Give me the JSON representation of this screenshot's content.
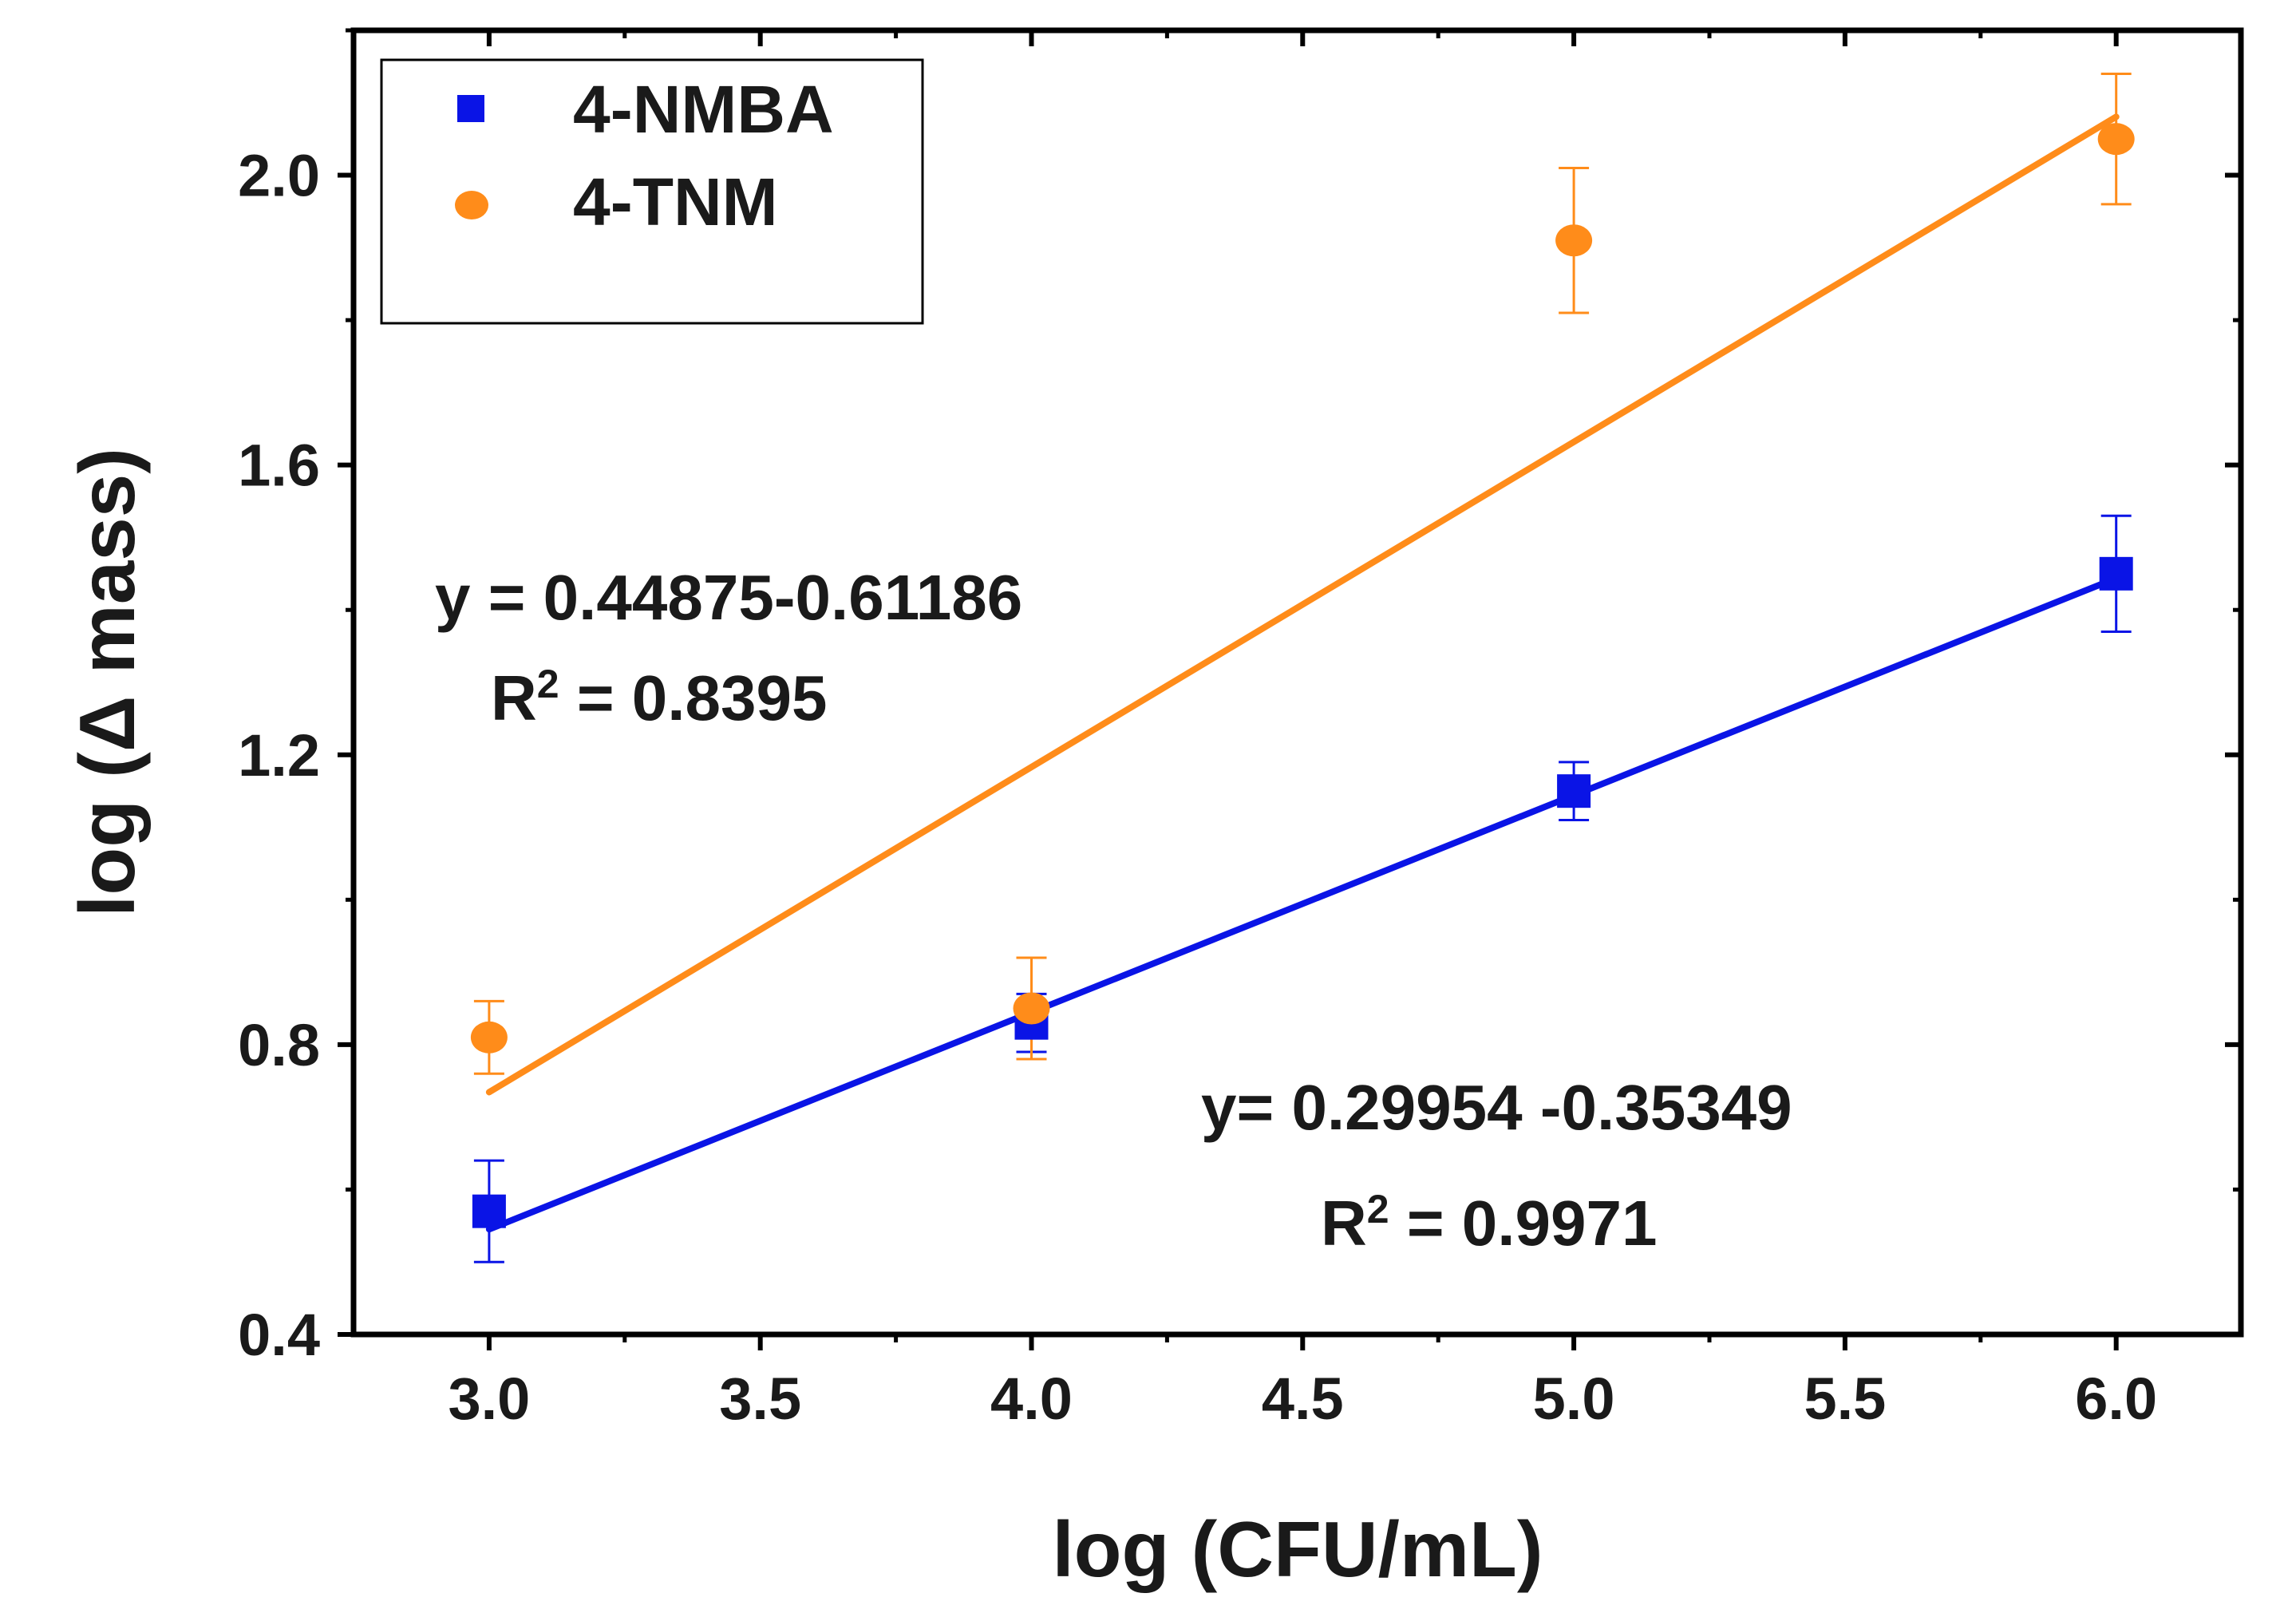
{
  "chart_data": {
    "type": "scatter",
    "xlabel": "log (CFU/mL)",
    "ylabel": "log (Δ mass)",
    "xlim": [
      2.75,
      6.23
    ],
    "ylim": [
      0.4,
      2.2
    ],
    "xticks": [
      3.0,
      3.5,
      4.0,
      4.5,
      5.0,
      5.5,
      6.0
    ],
    "xtick_labels": [
      "3.0",
      "3.5",
      "4.0",
      "4.5",
      "5.0",
      "5.5",
      "6.0"
    ],
    "yticks": [
      0.4,
      0.8,
      1.2,
      1.6,
      2.0
    ],
    "ytick_labels": [
      "0.4",
      "0.8",
      "1.2",
      "1.6",
      "2.0"
    ],
    "x_minor_step": 0.25,
    "y_minor_step": 0.2,
    "legend_position": "top-left",
    "series": [
      {
        "name": "4-NMBA",
        "marker": "square",
        "color": "#0a14e6",
        "x": [
          3,
          4,
          5,
          6
        ],
        "y": [
          0.57,
          0.83,
          1.15,
          1.45
        ],
        "yerr": [
          0.07,
          0.04,
          0.04,
          0.08
        ],
        "fit": {
          "slope": 0.29954,
          "intercept": -0.35349,
          "x_range": [
            3,
            6
          ]
        }
      },
      {
        "name": "4-TNM",
        "marker": "circle",
        "color": "#ff8c1a",
        "x": [
          3,
          4,
          5,
          6
        ],
        "y": [
          0.81,
          0.85,
          1.91,
          2.05
        ],
        "yerr": [
          0.05,
          0.07,
          0.1,
          0.09
        ],
        "fit": {
          "slope": 0.44875,
          "intercept": -0.61186,
          "x_range": [
            3,
            6
          ]
        }
      }
    ],
    "annotations": [
      {
        "name": "tnm-equation",
        "text": "y = 0.44875-0.61186"
      },
      {
        "name": "tnm-r2",
        "prefix": "R",
        "sup": "2",
        "text": " = 0.8395"
      },
      {
        "name": "nmba-equation",
        "text": "y= 0.29954 -0.35349"
      },
      {
        "name": "nmba-r2",
        "prefix": "R",
        "sup": "2",
        "text": " = 0.9971"
      }
    ]
  }
}
